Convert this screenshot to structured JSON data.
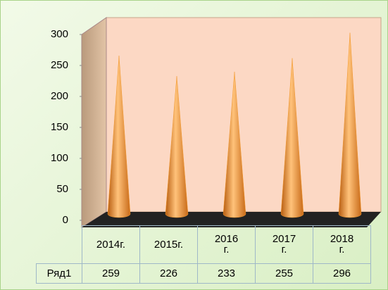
{
  "chart_data": {
    "type": "cone",
    "categories": [
      "2014г.",
      "2015г.",
      "2016 г.",
      "2017 г.",
      "2018 г."
    ],
    "series": [
      {
        "name": "Ряд1",
        "color": "#f39a2e",
        "values": [
          259,
          226,
          233,
          255,
          296
        ]
      }
    ],
    "ylim": [
      0,
      300
    ],
    "yticks": [
      0,
      50,
      100,
      150,
      200,
      250,
      300
    ],
    "data_table": true
  }
}
